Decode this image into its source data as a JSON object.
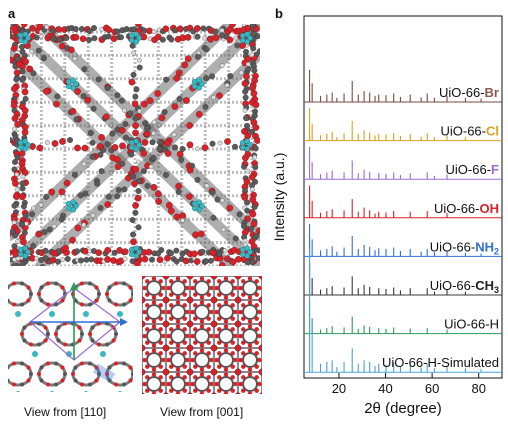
{
  "panels": {
    "a_label": "a",
    "b_label": "b",
    "captions": [
      "View from [110]",
      "View from [001]"
    ]
  },
  "colors": {
    "oxygen": "#d8222a",
    "carbon": "#5a5a5a",
    "zirconium": "#39b7c3",
    "purple_cell": "#9a6bd6",
    "green_axis": "#2a9d55",
    "blue_axis": "#2f6fd6"
  },
  "chart_data": {
    "type": "line",
    "ylabel": "Intensity (a.u.)",
    "xlabel": "2θ (degree)",
    "xlim": [
      5,
      90
    ],
    "xticks": [
      20,
      40,
      60,
      80
    ],
    "grid": false,
    "series": [
      {
        "prefix": "UiO-66-",
        "group": "Br",
        "color": "#7a4a3c",
        "group_color": "#8a5b4b",
        "peaks": [
          [
            7.4,
            0.95
          ],
          [
            8.5,
            0.55
          ],
          [
            12.1,
            0.18
          ],
          [
            14.8,
            0.22
          ],
          [
            17.1,
            0.28
          ],
          [
            19.1,
            0.12
          ],
          [
            22.2,
            0.25
          ],
          [
            25.7,
            0.62
          ],
          [
            28.3,
            0.22
          ],
          [
            30.8,
            0.32
          ],
          [
            33.2,
            0.28
          ],
          [
            35.5,
            0.18
          ],
          [
            37.1,
            0.22
          ],
          [
            40.2,
            0.2
          ],
          [
            43.5,
            0.25
          ],
          [
            46.4,
            0.15
          ],
          [
            50.6,
            0.22
          ],
          [
            55.3,
            0.14
          ],
          [
            57.9,
            0.25
          ],
          [
            61.0,
            0.12
          ],
          [
            66.4,
            0.18
          ],
          [
            74.3,
            0.12
          ],
          [
            81.0,
            0.1
          ]
        ]
      },
      {
        "prefix": "UiO-66-",
        "group": "Cl",
        "color": "#d9a21a",
        "group_color": "#d9a21a",
        "peaks": [
          [
            7.4,
            0.95
          ],
          [
            8.5,
            0.5
          ],
          [
            12.1,
            0.16
          ],
          [
            14.8,
            0.2
          ],
          [
            17.1,
            0.26
          ],
          [
            19.1,
            0.1
          ],
          [
            22.2,
            0.22
          ],
          [
            25.7,
            0.58
          ],
          [
            28.3,
            0.2
          ],
          [
            30.8,
            0.3
          ],
          [
            33.2,
            0.24
          ],
          [
            35.5,
            0.15
          ],
          [
            37.1,
            0.2
          ],
          [
            40.2,
            0.18
          ],
          [
            43.5,
            0.22
          ],
          [
            46.4,
            0.14
          ],
          [
            50.6,
            0.2
          ],
          [
            55.3,
            0.12
          ],
          [
            57.9,
            0.22
          ],
          [
            61.0,
            0.1
          ],
          [
            66.4,
            0.15
          ],
          [
            74.3,
            0.1
          ]
        ]
      },
      {
        "prefix": "UiO-66-",
        "group": "F",
        "color": "#9a6bd6",
        "group_color": "#9a6bd6",
        "peaks": [
          [
            7.4,
            0.95
          ],
          [
            8.5,
            0.5
          ],
          [
            12.1,
            0.15
          ],
          [
            14.8,
            0.2
          ],
          [
            17.1,
            0.25
          ],
          [
            22.2,
            0.2
          ],
          [
            25.7,
            0.55
          ],
          [
            28.3,
            0.18
          ],
          [
            30.8,
            0.28
          ],
          [
            33.2,
            0.22
          ],
          [
            37.1,
            0.18
          ],
          [
            40.2,
            0.16
          ],
          [
            43.5,
            0.2
          ],
          [
            46.4,
            0.12
          ],
          [
            50.6,
            0.18
          ],
          [
            57.9,
            0.2
          ],
          [
            61.0,
            0.1
          ],
          [
            66.4,
            0.14
          ]
        ]
      },
      {
        "prefix": "UiO-66-",
        "group": "OH",
        "color": "#d8222a",
        "group_color": "#d8222a",
        "peaks": [
          [
            7.4,
            0.95
          ],
          [
            8.5,
            0.5
          ],
          [
            12.1,
            0.15
          ],
          [
            14.8,
            0.2
          ],
          [
            17.1,
            0.25
          ],
          [
            22.2,
            0.22
          ],
          [
            25.7,
            0.55
          ],
          [
            28.3,
            0.18
          ],
          [
            30.8,
            0.3
          ],
          [
            33.2,
            0.22
          ],
          [
            35.5,
            0.12
          ],
          [
            37.1,
            0.18
          ],
          [
            40.2,
            0.16
          ],
          [
            43.5,
            0.2
          ],
          [
            50.6,
            0.18
          ],
          [
            57.9,
            0.2
          ],
          [
            66.4,
            0.14
          ]
        ]
      },
      {
        "prefix": "UiO-66-",
        "group": "NH",
        "group_sub": "2",
        "color": "#2f6fd6",
        "group_color": "#2f6fd6",
        "peaks": [
          [
            7.4,
            0.95
          ],
          [
            8.5,
            0.5
          ],
          [
            12.1,
            0.18
          ],
          [
            14.8,
            0.22
          ],
          [
            17.1,
            0.3
          ],
          [
            19.1,
            0.14
          ],
          [
            22.2,
            0.26
          ],
          [
            25.7,
            0.6
          ],
          [
            28.3,
            0.22
          ],
          [
            30.8,
            0.34
          ],
          [
            33.2,
            0.28
          ],
          [
            35.5,
            0.18
          ],
          [
            37.1,
            0.24
          ],
          [
            40.2,
            0.22
          ],
          [
            43.5,
            0.26
          ],
          [
            46.4,
            0.16
          ],
          [
            50.6,
            0.22
          ],
          [
            55.3,
            0.14
          ],
          [
            57.9,
            0.22
          ],
          [
            61.0,
            0.12
          ],
          [
            66.4,
            0.16
          ],
          [
            74.3,
            0.1
          ],
          [
            81.0,
            0.08
          ]
        ]
      },
      {
        "prefix": "UiO-66-",
        "group": "CH",
        "group_sub": "3",
        "color": "#3a3a3a",
        "group_color": "#222222",
        "peaks": [
          [
            7.4,
            0.95
          ],
          [
            8.5,
            0.5
          ],
          [
            12.1,
            0.16
          ],
          [
            14.8,
            0.2
          ],
          [
            17.1,
            0.26
          ],
          [
            22.2,
            0.22
          ],
          [
            25.7,
            0.55
          ],
          [
            28.3,
            0.2
          ],
          [
            30.8,
            0.3
          ],
          [
            33.2,
            0.24
          ],
          [
            37.1,
            0.2
          ],
          [
            40.2,
            0.18
          ],
          [
            43.5,
            0.22
          ],
          [
            46.4,
            0.14
          ],
          [
            50.6,
            0.2
          ],
          [
            57.9,
            0.2
          ],
          [
            61.0,
            0.1
          ],
          [
            66.4,
            0.15
          ],
          [
            74.3,
            0.1
          ]
        ]
      },
      {
        "prefix": "UiO-66-H",
        "group": "",
        "color": "#2a9d55",
        "group_color": "#2a9d55",
        "peaks": [
          [
            7.4,
            0.95
          ],
          [
            8.5,
            0.45
          ],
          [
            12.1,
            0.12
          ],
          [
            14.8,
            0.16
          ],
          [
            17.1,
            0.22
          ],
          [
            22.2,
            0.18
          ],
          [
            25.7,
            0.5
          ],
          [
            28.3,
            0.14
          ],
          [
            30.8,
            0.24
          ],
          [
            33.2,
            0.2
          ],
          [
            37.1,
            0.16
          ],
          [
            40.2,
            0.14
          ],
          [
            43.5,
            0.18
          ],
          [
            50.6,
            0.15
          ],
          [
            57.9,
            0.16
          ],
          [
            66.4,
            0.12
          ]
        ]
      },
      {
        "prefix": "UiO-66-H-Simulated",
        "group": "",
        "color": "#4aa3d8",
        "group_color": "#4aa3d8",
        "peaks": [
          [
            7.4,
            3.6
          ],
          [
            8.5,
            1.4
          ],
          [
            12.1,
            0.25
          ],
          [
            14.8,
            0.3
          ],
          [
            17.1,
            0.35
          ],
          [
            19.1,
            0.15
          ],
          [
            22.2,
            0.3
          ],
          [
            25.7,
            0.7
          ],
          [
            28.3,
            0.25
          ],
          [
            30.8,
            0.35
          ],
          [
            33.2,
            0.3
          ],
          [
            35.5,
            0.18
          ],
          [
            37.1,
            0.25
          ],
          [
            40.2,
            0.22
          ],
          [
            43.5,
            0.28
          ],
          [
            46.4,
            0.16
          ],
          [
            50.6,
            0.24
          ],
          [
            55.3,
            0.14
          ],
          [
            57.9,
            0.25
          ],
          [
            61.0,
            0.12
          ],
          [
            66.4,
            0.18
          ],
          [
            74.3,
            0.12
          ],
          [
            81.0,
            0.1
          ]
        ]
      }
    ]
  }
}
